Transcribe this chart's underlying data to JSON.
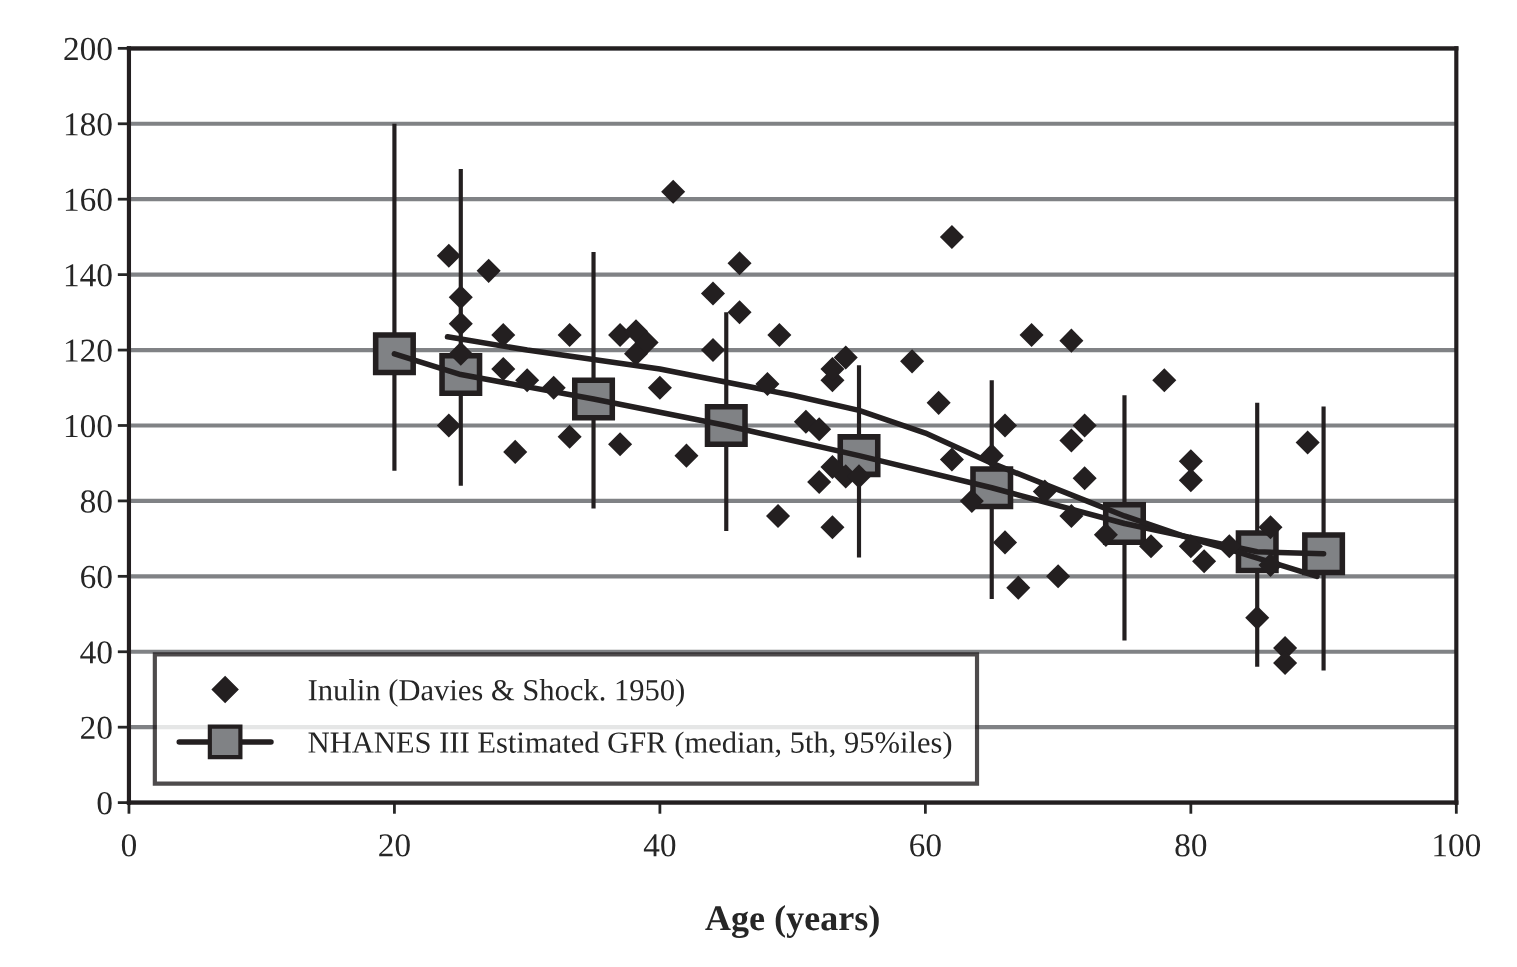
{
  "chart_data": {
    "type": "scatter",
    "xlabel": "Age (years)",
    "xlim": [
      0,
      100
    ],
    "xticks": [
      0,
      20,
      40,
      60,
      80,
      100
    ],
    "ylim": [
      0,
      200
    ],
    "yticks": [
      0,
      20,
      40,
      60,
      80,
      100,
      120,
      140,
      160,
      180,
      200
    ],
    "grid": "y",
    "legend": "bottom left",
    "series": [
      {
        "name": "Inulin (Davies & Shock. 1950)",
        "marker": "diamond",
        "color": "#231f20",
        "x": [
          24.1,
          25,
          25,
          25,
          24.1,
          27.1,
          28.2,
          28.2,
          30,
          29.1,
          32,
          33.2,
          33.2,
          37,
          38.2,
          38.2,
          39,
          37,
          40,
          41,
          42,
          44,
          44,
          46,
          46,
          48.1,
          49,
          48.9,
          51,
          52,
          52,
          53,
          53,
          54,
          53,
          53,
          54,
          55,
          59,
          61,
          62,
          62,
          63.5,
          65,
          66,
          66,
          67,
          68,
          69,
          70,
          71,
          71,
          71,
          72,
          72,
          73.6,
          77,
          78,
          80,
          80,
          80,
          81,
          82.9,
          86,
          85,
          86,
          87.1,
          87.1,
          88.8
        ],
        "values": [
          145,
          134,
          127,
          119,
          100,
          141,
          124,
          115,
          112,
          93,
          110,
          124,
          97,
          124,
          125,
          119,
          122,
          95,
          110,
          162,
          92,
          135,
          120,
          143,
          130,
          111,
          124,
          76,
          101,
          99,
          85,
          112,
          115,
          118,
          73,
          89,
          86.5,
          86.5,
          117,
          106,
          150,
          91,
          80,
          92,
          100,
          69,
          57,
          124,
          82.5,
          60,
          122.5,
          96,
          76,
          100,
          86,
          71,
          68,
          112,
          90.5,
          85.5,
          68,
          64,
          68,
          73,
          49,
          63,
          41,
          37,
          95.5
        ]
      },
      {
        "name": "NHANES III Estimated GFR (median, 5th, 95%iles)",
        "type": "line",
        "marker": "square",
        "color": "#808285",
        "x": [
          20,
          25,
          35,
          45,
          55,
          65,
          75,
          85,
          90
        ],
        "values": [
          119,
          113.5,
          107,
          100,
          92,
          83.5,
          74,
          66.5,
          66
        ],
        "errors": [
          [
            88,
            180
          ],
          [
            84,
            168
          ],
          [
            78,
            146
          ],
          [
            72,
            130
          ],
          [
            65,
            116
          ],
          [
            54,
            112
          ],
          [
            43,
            108
          ],
          [
            36,
            106
          ],
          [
            35,
            105
          ]
        ]
      },
      {
        "type": "line",
        "marker": "none",
        "color": "#231f20",
        "x": [
          24,
          30,
          40,
          50,
          55,
          60,
          65,
          70,
          75,
          80,
          83,
          89.5
        ],
        "values": [
          123.5,
          120,
          115,
          108,
          104,
          98,
          90,
          83,
          76,
          70,
          67,
          60
        ]
      }
    ]
  }
}
